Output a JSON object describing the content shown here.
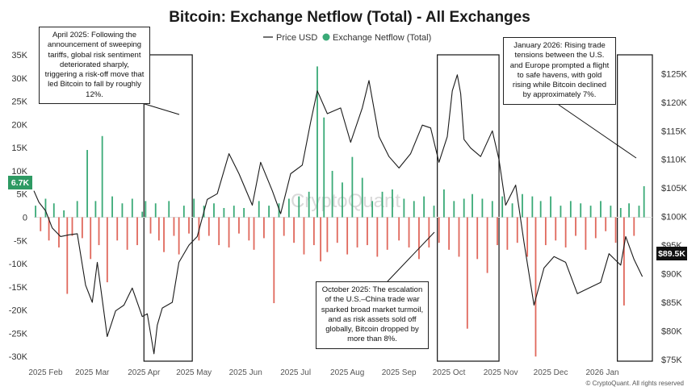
{
  "title": "Bitcoin: Exchange Netflow (Total) - All Exchanges",
  "legend": {
    "price_label": "Price USD",
    "netflow_label": "Exchange Netflow (Total)"
  },
  "colors": {
    "price": "#1a1a1a",
    "inflow": "#3aaa77",
    "outflow": "#e0685c",
    "badge_left": "#2e9a63",
    "badge_right": "#111111"
  },
  "watermark": "CryptoQuant",
  "credit": "© CryptoQuant. All rights reserved",
  "badges": {
    "left": "6.7K",
    "right": "$89.5K"
  },
  "annotations": [
    {
      "name": "april-2025-annotation",
      "text": "April 2025: Following the announcement of sweeping tariffs, global risk sentiment deteriorated sharply, triggering a risk-off move that led Bitcoin to fall by roughly 12%."
    },
    {
      "name": "october-2025-annotation",
      "text": "October 2025: The escalation of the U.S.–China trade war sparked broad market turmoil, and as risk assets sold off globally, Bitcoin dropped by more than 8%."
    },
    {
      "name": "january-2026-annotation",
      "text": "January 2026: Rising trade tensions between the U.S. and Europe prompted a flight to safe havens, with gold rising while Bitcoin declined by approximately 7%."
    }
  ],
  "chart_data": {
    "type": "bar",
    "title": "Bitcoin: Exchange Netflow (Total) - All Exchanges",
    "x_labels": [
      "2025 Feb",
      "2025 Mar",
      "2025 Apr",
      "2025 May",
      "2025 Jun",
      "2025 Jul",
      "2025 Aug",
      "2025 Sep",
      "2025 Oct",
      "2025 Nov",
      "2025 Dec",
      "2026 Jan"
    ],
    "x_range": [
      "2025-01-25",
      "2026-01-31"
    ],
    "y_left": {
      "label": "",
      "range": [
        -31000,
        35000
      ],
      "ticks": [
        35000,
        30000,
        25000,
        20000,
        15000,
        10000,
        5000,
        0,
        -5000,
        -10000,
        -15000,
        -20000,
        -25000,
        -30000
      ],
      "tick_labels": [
        "35K",
        "30K",
        "25K",
        "20K",
        "15K",
        "10K",
        "5K",
        "0",
        "-5K",
        "-10K",
        "-15K",
        "-20K",
        "-25K",
        "-30K"
      ]
    },
    "y_right": {
      "label": "",
      "range": [
        74700,
        128300
      ],
      "ticks": [
        125000,
        120000,
        115000,
        110000,
        105000,
        100000,
        95000,
        90000,
        85000,
        80000,
        75000
      ],
      "tick_labels": [
        "$125K",
        "$120K",
        "$115K",
        "$110K",
        "$105K",
        "$100K",
        "$95K",
        "$90K",
        "$85K",
        "$80K",
        "$75K"
      ]
    },
    "highlight_ranges": [
      [
        "2025-04-01",
        "2025-04-30"
      ],
      [
        "2025-09-24",
        "2025-10-31"
      ],
      [
        "2026-01-10",
        "2026-01-31"
      ]
    ],
    "series": [
      {
        "name": "Price USD",
        "type": "line",
        "points": [
          [
            "2025-01-25",
            104500
          ],
          [
            "2025-01-28",
            102500
          ],
          [
            "2025-02-01",
            101000
          ],
          [
            "2025-02-05",
            98000
          ],
          [
            "2025-02-10",
            96500
          ],
          [
            "2025-02-15",
            96800
          ],
          [
            "2025-02-20",
            97000
          ],
          [
            "2025-02-25",
            88000
          ],
          [
            "2025-03-01",
            85000
          ],
          [
            "2025-03-04",
            92000
          ],
          [
            "2025-03-10",
            79000
          ],
          [
            "2025-03-15",
            83500
          ],
          [
            "2025-03-20",
            84500
          ],
          [
            "2025-03-25",
            87500
          ],
          [
            "2025-03-31",
            82500
          ],
          [
            "2025-04-03",
            83000
          ],
          [
            "2025-04-07",
            76000
          ],
          [
            "2025-04-09",
            81000
          ],
          [
            "2025-04-12",
            84000
          ],
          [
            "2025-04-18",
            85000
          ],
          [
            "2025-04-22",
            92000
          ],
          [
            "2025-04-28",
            95000
          ],
          [
            "2025-05-03",
            96500
          ],
          [
            "2025-05-09",
            103000
          ],
          [
            "2025-05-15",
            104000
          ],
          [
            "2025-05-22",
            111000
          ],
          [
            "2025-05-28",
            107500
          ],
          [
            "2025-06-05",
            102000
          ],
          [
            "2025-06-10",
            109500
          ],
          [
            "2025-06-17",
            104500
          ],
          [
            "2025-06-22",
            100500
          ],
          [
            "2025-06-28",
            107500
          ],
          [
            "2025-07-05",
            109000
          ],
          [
            "2025-07-10",
            116500
          ],
          [
            "2025-07-14",
            122000
          ],
          [
            "2025-07-20",
            118000
          ],
          [
            "2025-07-28",
            119000
          ],
          [
            "2025-08-03",
            113000
          ],
          [
            "2025-08-10",
            119000
          ],
          [
            "2025-08-14",
            123800
          ],
          [
            "2025-08-20",
            114000
          ],
          [
            "2025-08-26",
            110500
          ],
          [
            "2025-09-01",
            108500
          ],
          [
            "2025-09-08",
            111000
          ],
          [
            "2025-09-15",
            116000
          ],
          [
            "2025-09-20",
            115500
          ],
          [
            "2025-09-25",
            109500
          ],
          [
            "2025-09-30",
            114000
          ],
          [
            "2025-10-03",
            122000
          ],
          [
            "2025-10-06",
            124800
          ],
          [
            "2025-10-08",
            121500
          ],
          [
            "2025-10-10",
            113500
          ],
          [
            "2025-10-14",
            112000
          ],
          [
            "2025-10-20",
            110500
          ],
          [
            "2025-10-27",
            115000
          ],
          [
            "2025-10-31",
            110000
          ],
          [
            "2025-11-04",
            102000
          ],
          [
            "2025-11-10",
            105500
          ],
          [
            "2025-11-15",
            95500
          ],
          [
            "2025-11-21",
            84500
          ],
          [
            "2025-11-27",
            91000
          ],
          [
            "2025-12-03",
            93000
          ],
          [
            "2025-12-10",
            92000
          ],
          [
            "2025-12-17",
            86500
          ],
          [
            "2025-12-24",
            87500
          ],
          [
            "2025-12-31",
            88500
          ],
          [
            "2026-01-05",
            93500
          ],
          [
            "2026-01-12",
            91500
          ],
          [
            "2026-01-15",
            96500
          ],
          [
            "2026-01-20",
            92500
          ],
          [
            "2026-01-25",
            89500
          ]
        ]
      },
      {
        "name": "Exchange Netflow (Total)",
        "type": "bar",
        "points": [
          [
            "2025-01-26",
            2500
          ],
          [
            "2025-01-29",
            -3000
          ],
          [
            "2025-02-01",
            4000
          ],
          [
            "2025-02-03",
            -5000
          ],
          [
            "2025-02-06",
            3000
          ],
          [
            "2025-02-09",
            -6500
          ],
          [
            "2025-02-12",
            1500
          ],
          [
            "2025-02-14",
            -16500
          ],
          [
            "2025-02-17",
            -4000
          ],
          [
            "2025-02-20",
            3500
          ],
          [
            "2025-02-23",
            -4500
          ],
          [
            "2025-02-26",
            14500
          ],
          [
            "2025-02-28",
            -9000
          ],
          [
            "2025-03-03",
            3500
          ],
          [
            "2025-03-05",
            -6000
          ],
          [
            "2025-03-07",
            17500
          ],
          [
            "2025-03-10",
            -14000
          ],
          [
            "2025-03-13",
            4500
          ],
          [
            "2025-03-16",
            -5000
          ],
          [
            "2025-03-19",
            3000
          ],
          [
            "2025-03-22",
            -7000
          ],
          [
            "2025-03-25",
            4000
          ],
          [
            "2025-03-28",
            -6000
          ],
          [
            "2025-03-31",
            1200
          ],
          [
            "2025-04-02",
            3500
          ],
          [
            "2025-04-05",
            -3500
          ],
          [
            "2025-04-08",
            3000
          ],
          [
            "2025-04-10",
            -5000
          ],
          [
            "2025-04-13",
            -7500
          ],
          [
            "2025-04-16",
            3500
          ],
          [
            "2025-04-19",
            -4000
          ],
          [
            "2025-04-22",
            -8000
          ],
          [
            "2025-04-25",
            2500
          ],
          [
            "2025-04-28",
            -3500
          ],
          [
            "2025-05-01",
            4000
          ],
          [
            "2025-05-04",
            -5000
          ],
          [
            "2025-05-07",
            2500
          ],
          [
            "2025-05-10",
            -4000
          ],
          [
            "2025-05-13",
            3000
          ],
          [
            "2025-05-16",
            -6000
          ],
          [
            "2025-05-19",
            2000
          ],
          [
            "2025-05-22",
            -6500
          ],
          [
            "2025-05-25",
            2500
          ],
          [
            "2025-05-28",
            -3500
          ],
          [
            "2025-05-31",
            2000
          ],
          [
            "2025-06-03",
            -5000
          ],
          [
            "2025-06-06",
            -7000
          ],
          [
            "2025-06-09",
            3500
          ],
          [
            "2025-06-12",
            -4500
          ],
          [
            "2025-06-15",
            2500
          ],
          [
            "2025-06-18",
            -18500
          ],
          [
            "2025-06-21",
            3000
          ],
          [
            "2025-06-24",
            -4000
          ],
          [
            "2025-06-27",
            4000
          ],
          [
            "2025-06-30",
            -5500
          ],
          [
            "2025-07-03",
            4500
          ],
          [
            "2025-07-06",
            -8000
          ],
          [
            "2025-07-09",
            5500
          ],
          [
            "2025-07-12",
            -6000
          ],
          [
            "2025-07-14",
            32500
          ],
          [
            "2025-07-16",
            -9500
          ],
          [
            "2025-07-18",
            21500
          ],
          [
            "2025-07-20",
            -7500
          ],
          [
            "2025-07-23",
            10000
          ],
          [
            "2025-07-26",
            -5500
          ],
          [
            "2025-07-29",
            7500
          ],
          [
            "2025-08-01",
            -8000
          ],
          [
            "2025-08-04",
            13000
          ],
          [
            "2025-08-07",
            -6500
          ],
          [
            "2025-08-10",
            8500
          ],
          [
            "2025-08-13",
            -6000
          ],
          [
            "2025-08-16",
            3500
          ],
          [
            "2025-08-19",
            -8500
          ],
          [
            "2025-08-22",
            5500
          ],
          [
            "2025-08-25",
            -7000
          ],
          [
            "2025-08-28",
            6000
          ],
          [
            "2025-09-01",
            -5000
          ],
          [
            "2025-09-04",
            4000
          ],
          [
            "2025-09-07",
            -6500
          ],
          [
            "2025-09-10",
            3500
          ],
          [
            "2025-09-13",
            -9000
          ],
          [
            "2025-09-16",
            4500
          ],
          [
            "2025-09-19",
            -6500
          ],
          [
            "2025-09-22",
            2500
          ],
          [
            "2025-09-25",
            -5500
          ],
          [
            "2025-09-28",
            6000
          ],
          [
            "2025-10-01",
            -7000
          ],
          [
            "2025-10-04",
            3500
          ],
          [
            "2025-10-07",
            -8500
          ],
          [
            "2025-10-10",
            4000
          ],
          [
            "2025-10-12",
            -24000
          ],
          [
            "2025-10-15",
            5000
          ],
          [
            "2025-10-18",
            -9000
          ],
          [
            "2025-10-21",
            4000
          ],
          [
            "2025-10-24",
            -12000
          ],
          [
            "2025-10-27",
            3500
          ],
          [
            "2025-10-30",
            -6000
          ],
          [
            "2025-11-02",
            4500
          ],
          [
            "2025-11-05",
            -7000
          ],
          [
            "2025-11-08",
            3000
          ],
          [
            "2025-11-11",
            -5500
          ],
          [
            "2025-11-14",
            5000
          ],
          [
            "2025-11-17",
            -8500
          ],
          [
            "2025-11-20",
            4500
          ],
          [
            "2025-11-22",
            -30000
          ],
          [
            "2025-11-25",
            3500
          ],
          [
            "2025-11-28",
            -6000
          ],
          [
            "2025-12-01",
            4500
          ],
          [
            "2025-12-04",
            -5000
          ],
          [
            "2025-12-07",
            2500
          ],
          [
            "2025-12-10",
            -6500
          ],
          [
            "2025-12-13",
            3500
          ],
          [
            "2025-12-16",
            -4000
          ],
          [
            "2025-12-19",
            3000
          ],
          [
            "2025-12-22",
            -7000
          ],
          [
            "2025-12-25",
            2500
          ],
          [
            "2025-12-28",
            -4500
          ],
          [
            "2025-12-31",
            3500
          ],
          [
            "2026-01-03",
            -3000
          ],
          [
            "2026-01-06",
            2500
          ],
          [
            "2026-01-09",
            -5500
          ],
          [
            "2026-01-12",
            2000
          ],
          [
            "2026-01-14",
            -19000
          ],
          [
            "2026-01-17",
            3000
          ],
          [
            "2026-01-20",
            -4000
          ],
          [
            "2026-01-23",
            2500
          ],
          [
            "2026-01-26",
            6700
          ]
        ]
      }
    ],
    "current_values": {
      "netflow": 6700,
      "price": 89500
    }
  }
}
